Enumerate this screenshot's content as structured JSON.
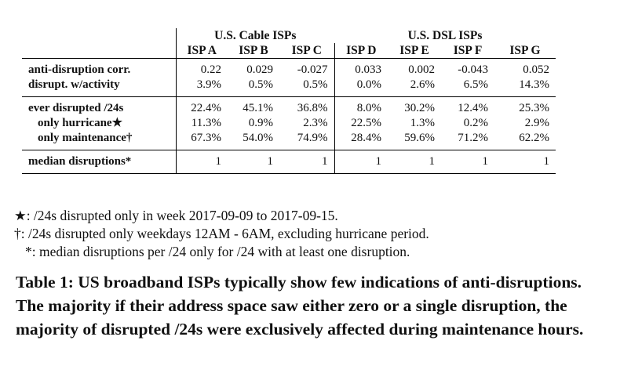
{
  "table": {
    "groups": [
      {
        "label": "U.S. Cable ISPs"
      },
      {
        "label": "U.S. DSL ISPs"
      }
    ],
    "columns": [
      "ISP A",
      "ISP B",
      "ISP C",
      "ISP D",
      "ISP E",
      "ISP F",
      "ISP G"
    ],
    "rows": [
      {
        "label": "anti-disruption corr.",
        "values": [
          "0.22",
          "0.029",
          "-0.027",
          "0.033",
          "0.002",
          "-0.043",
          "0.052"
        ]
      },
      {
        "label": "disrupt. w/activity",
        "values": [
          "3.9%",
          "0.5%",
          "0.5%",
          "0.0%",
          "2.6%",
          "6.5%",
          "14.3%"
        ]
      },
      {
        "label": "ever disrupted /24s",
        "values": [
          "22.4%",
          "45.1%",
          "36.8%",
          "8.0%",
          "30.2%",
          "12.4%",
          "25.3%"
        ]
      },
      {
        "label": "only hurricane★",
        "values": [
          "11.3%",
          "0.9%",
          "2.3%",
          "22.5%",
          "1.3%",
          "0.2%",
          "2.9%"
        ]
      },
      {
        "label": "only maintenance†",
        "values": [
          "67.3%",
          "54.0%",
          "74.9%",
          "28.4%",
          "59.6%",
          "71.2%",
          "62.2%"
        ]
      },
      {
        "label": "median disruptions*",
        "values": [
          "1",
          "1",
          "1",
          "1",
          "1",
          "1",
          "1"
        ]
      }
    ]
  },
  "notes": [
    "★: /24s disrupted only in week 2017-09-09 to 2017-09-15.",
    "†: /24s disrupted only weekdays 12AM - 6AM, excluding hurricane period.",
    "*: median disruptions per /24 only for /24 with at least one disruption."
  ],
  "caption": "Table 1: US broadband ISPs typically show few indications of anti-disruptions. The majority if their address space saw either zero or a single disruption, the majority of disrupted /24s were exclusively affected during maintenance hours."
}
